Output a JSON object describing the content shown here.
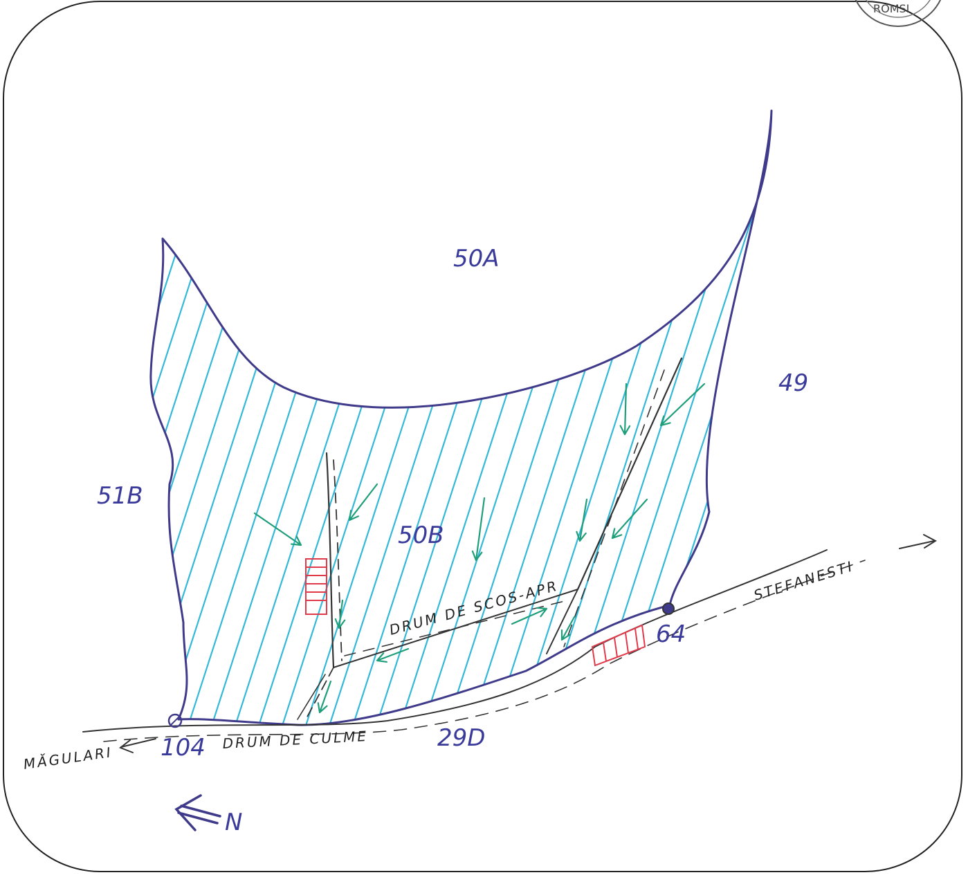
{
  "colors": {
    "boundary": "#3f3a8a",
    "hatch": "#33b8d8",
    "flow_arrows": "#1f9e7a",
    "roads": "#333333",
    "deposits": "#e03a4a",
    "labels": "#3a3a9a"
  },
  "stamp": {
    "text": "ROMSI"
  },
  "parcels": {
    "p50a": "50A",
    "p50b": "50B",
    "p49": "49",
    "p51b": "51B",
    "p29d": "29D"
  },
  "markers": {
    "m104": "104",
    "m64": "64"
  },
  "roads": {
    "skid_road": "DRUM DE SCOS-APR",
    "ridge_road": "DRUM DE CULME",
    "to_east": "STEFANESTI",
    "to_west": "MĂGULARI"
  },
  "north": {
    "label": "N"
  },
  "icons": {
    "north_arrow": "arrow-left-icon",
    "boundary_marker": "circle-marker-icon",
    "flow": "arrow-icon"
  }
}
